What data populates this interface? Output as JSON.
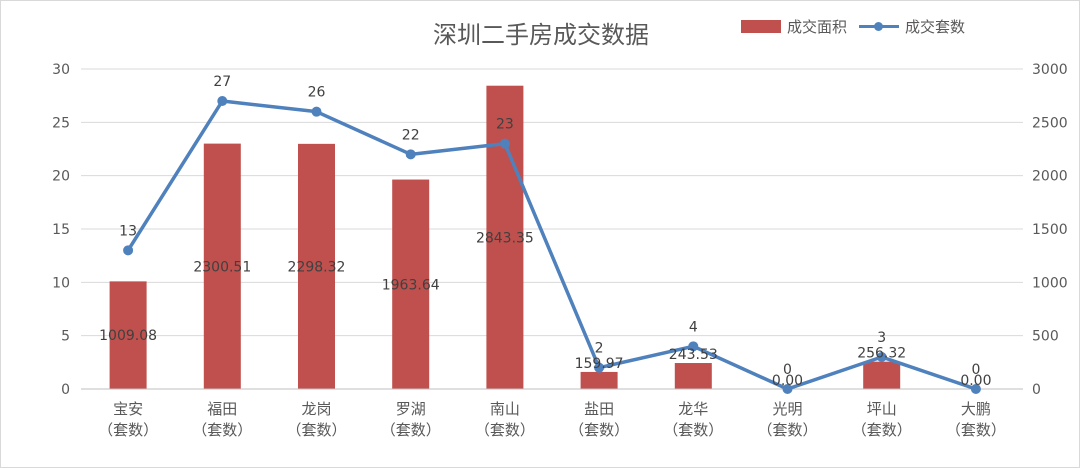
{
  "chart_data": {
    "type": "bar",
    "title": "深圳二手房成交数据",
    "categories": [
      [
        "宝安",
        "（套数）"
      ],
      [
        "福田",
        "（套数）"
      ],
      [
        "龙岗",
        "（套数）"
      ],
      [
        "罗湖",
        "（套数）"
      ],
      [
        "南山",
        "（套数）"
      ],
      [
        "盐田",
        "（套数）"
      ],
      [
        "龙华",
        "（套数）"
      ],
      [
        "光明",
        "（套数）"
      ],
      [
        "坪山",
        "（套数）"
      ],
      [
        "大鹏",
        "（套数）"
      ]
    ],
    "series": [
      {
        "name": "成交面积",
        "type": "bar",
        "axis": "right",
        "color": "#c0504d",
        "values": [
          1009.08,
          2300.51,
          2298.32,
          1963.64,
          2843.35,
          159.97,
          243.53,
          0.0,
          256.32,
          0.0
        ],
        "labels": [
          "1009.08",
          "2300.51",
          "2298.32",
          "1963.64",
          "2843.35",
          "159.97",
          "243.53",
          "0.00",
          "256.32",
          "0.00"
        ]
      },
      {
        "name": "成交套数",
        "type": "line",
        "axis": "left",
        "color": "#4f81bd",
        "values": [
          13,
          27,
          26,
          22,
          23,
          2,
          4,
          0,
          3,
          0
        ],
        "labels": [
          "13",
          "27",
          "26",
          "22",
          "23",
          "2",
          "4",
          "0",
          "3",
          "0"
        ]
      }
    ],
    "left_axis": {
      "min": 0,
      "max": 30,
      "ticks": [
        "0",
        "5",
        "10",
        "15",
        "20",
        "25",
        "30"
      ]
    },
    "right_axis": {
      "min": 0,
      "max": 3000,
      "ticks": [
        "0",
        "500",
        "1000",
        "1500",
        "2000",
        "2500",
        "3000"
      ]
    },
    "grid": true,
    "legend_position": "top-right"
  }
}
